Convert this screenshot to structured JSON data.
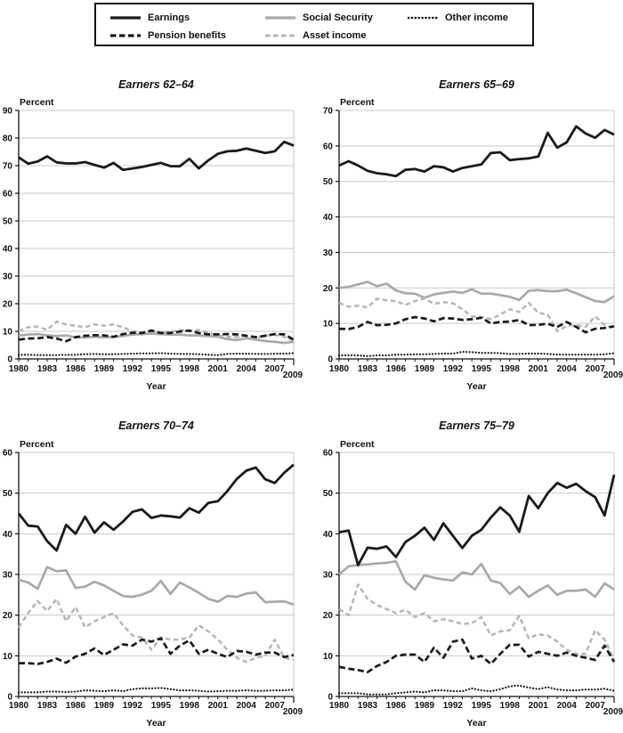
{
  "legend": {
    "items": [
      {
        "label": "Earnings",
        "style": "solid-black"
      },
      {
        "label": "Pension benefits",
        "style": "dashed-black"
      },
      {
        "label": "Social Security",
        "style": "solid-gray"
      },
      {
        "label": "Asset income",
        "style": "dashed-gray"
      },
      {
        "label": "Other income",
        "style": "dotted-black"
      }
    ]
  },
  "colors": {
    "black_line": "#1a1a1a",
    "gray_line": "#a9a9a9",
    "light_gray_line": "#b6b6b6",
    "gridline": "#c9c9c9"
  },
  "chart_data": [
    {
      "type": "line",
      "title": "Earners 62–64",
      "ylabel": "Percent",
      "xlabel": "Year",
      "ylim": [
        0,
        90
      ],
      "ytick_step": 10,
      "years_start": 1980,
      "years_end": 2009,
      "x_tick_labels": [
        "1980",
        "1983",
        "1986",
        "1989",
        "1992",
        "1995",
        "1998",
        "2001",
        "2004",
        "2007"
      ],
      "x_last_tick": "2009",
      "grid": true,
      "series": [
        {
          "name": "Social Security",
          "values": [
            8.5,
            8.8,
            9,
            8.5,
            8.3,
            8.5,
            7.8,
            7.8,
            8,
            7.8,
            8,
            8.3,
            8.8,
            9,
            9.2,
            9,
            8.8,
            8.8,
            8.5,
            8.5,
            8.3,
            8,
            7.2,
            6.8,
            7.5,
            7,
            6.5,
            6.2,
            5.8,
            6.2
          ]
        },
        {
          "name": "Asset income",
          "values": [
            10,
            11.5,
            11.7,
            10.5,
            13.5,
            12.5,
            12,
            11.5,
            12.5,
            12,
            12.5,
            11.5,
            10,
            9.5,
            10,
            9.5,
            9.7,
            10.5,
            10,
            10.5,
            9.5,
            8.5,
            8,
            8,
            7.5,
            7.5,
            8.5,
            8.7,
            8,
            6.5
          ]
        },
        {
          "name": "Pension benefits",
          "values": [
            7,
            7.4,
            7.5,
            7.9,
            7.4,
            6.4,
            7.9,
            8.4,
            8.6,
            8.5,
            8,
            9,
            9.5,
            9.4,
            10.3,
            9.4,
            9.4,
            9.9,
            10.3,
            9.4,
            8.9,
            8.9,
            9,
            8.9,
            8.4,
            7.9,
            8.4,
            9,
            8.9,
            7
          ]
        },
        {
          "name": "Earnings",
          "values": [
            73,
            70.7,
            71.5,
            73.4,
            71.2,
            70.8,
            70.8,
            71.3,
            70.3,
            69.3,
            71,
            68.5,
            69,
            69.5,
            70.3,
            71,
            69.8,
            69.8,
            72.5,
            69,
            71.9,
            74.3,
            75.2,
            75.4,
            76.2,
            75.4,
            74.6,
            75.2,
            78.6,
            77.3
          ]
        },
        {
          "name": "Other income",
          "values": [
            1.5,
            1.5,
            1.4,
            1.4,
            1.4,
            1.5,
            1.5,
            1.7,
            1.8,
            1.7,
            1.7,
            1.8,
            1.9,
            2,
            2,
            2.1,
            1.9,
            1.8,
            1.8,
            1.7,
            1.5,
            1.4,
            1.8,
            1.9,
            1.9,
            1.8,
            1.8,
            1.9,
            1.9,
            2.1
          ]
        }
      ]
    },
    {
      "type": "line",
      "title": "Earners 65–69",
      "ylabel": "Percent",
      "xlabel": "Year",
      "ylim": [
        0,
        70
      ],
      "ytick_step": 10,
      "years_start": 1980,
      "years_end": 2009,
      "x_tick_labels": [
        "1980",
        "1983",
        "1986",
        "1989",
        "1992",
        "1995",
        "1998",
        "2001",
        "2004",
        "2007"
      ],
      "x_last_tick": "2009",
      "grid": true,
      "series": [
        {
          "name": "Social Security",
          "values": [
            20,
            20.3,
            21,
            21.7,
            20.5,
            21.2,
            19.3,
            18.5,
            18.4,
            17.2,
            18.2,
            18.6,
            19,
            18.6,
            19.6,
            18.4,
            18.4,
            18,
            17.5,
            16.6,
            19.2,
            19.4,
            19.1,
            19.1,
            19.5,
            18.5,
            17.4,
            16.3,
            16,
            17.7
          ]
        },
        {
          "name": "Asset income",
          "values": [
            15.8,
            14.7,
            15,
            14.5,
            17,
            16.5,
            16.3,
            15.2,
            16.3,
            17,
            15.5,
            16,
            15.7,
            14,
            12,
            11.8,
            11.2,
            12.5,
            14,
            13.2,
            15.8,
            13,
            12.5,
            7.8,
            9.3,
            9.5,
            9,
            12,
            9.5,
            8.7
          ]
        },
        {
          "name": "Pension benefits",
          "values": [
            8.5,
            8.4,
            9,
            10.4,
            9.5,
            9.6,
            10,
            11.2,
            11.8,
            11.4,
            10.6,
            11.5,
            11.4,
            11,
            11.2,
            11.6,
            10,
            10.4,
            10.5,
            11,
            9.5,
            9.6,
            9.9,
            9,
            10.4,
            9,
            7.5,
            8.5,
            8.7,
            9.2
          ]
        },
        {
          "name": "Earnings",
          "values": [
            54.5,
            55.7,
            54.5,
            53,
            52.3,
            52,
            51.5,
            53.3,
            53.5,
            52.8,
            54.3,
            54,
            52.8,
            53.8,
            54.3,
            54.8,
            58,
            58.2,
            56,
            56.3,
            56.5,
            57,
            63.7,
            59.5,
            61,
            65.5,
            63.5,
            62.3,
            64.5,
            63.2
          ]
        },
        {
          "name": "Other income",
          "values": [
            1,
            1,
            1,
            0.8,
            1,
            1,
            1.2,
            1.2,
            1.3,
            1.3,
            1.4,
            1.5,
            1.5,
            2,
            1.9,
            1.7,
            1.7,
            1.6,
            1.4,
            1.4,
            1.5,
            1.5,
            1.4,
            1.2,
            1.2,
            1.2,
            1.2,
            1.2,
            1.3,
            1.6
          ]
        }
      ]
    },
    {
      "type": "line",
      "title": "Earners 70–74",
      "ylabel": "Percent",
      "xlabel": "Year",
      "ylim": [
        0,
        60
      ],
      "ytick_step": 10,
      "years_start": 1980,
      "years_end": 2009,
      "x_tick_labels": [
        "1980",
        "1983",
        "1986",
        "1989",
        "1992",
        "1995",
        "1998",
        "2001",
        "2004",
        "2007"
      ],
      "x_last_tick": "2009",
      "grid": true,
      "series": [
        {
          "name": "Social Security",
          "values": [
            28.7,
            28,
            26.5,
            31.8,
            30.8,
            31,
            26.7,
            27,
            28.2,
            27.3,
            26,
            24.7,
            24.5,
            25,
            26,
            28.4,
            25.2,
            28,
            26.8,
            25.5,
            24,
            23.3,
            24.7,
            24.5,
            25.3,
            25.6,
            23.2,
            23.3,
            23.4,
            22.6
          ]
        },
        {
          "name": "Asset income",
          "values": [
            17,
            20.5,
            23.5,
            21,
            24,
            18.5,
            22,
            17,
            18.5,
            19.5,
            20.5,
            17.5,
            15,
            14.5,
            11.5,
            14.5,
            14,
            14,
            14.5,
            17.5,
            16,
            14,
            11.5,
            9.5,
            8.5,
            9.5,
            10,
            14,
            9.5,
            9
          ]
        },
        {
          "name": "Pension benefits",
          "values": [
            8.2,
            8.2,
            8,
            8.5,
            9.3,
            8.3,
            9.8,
            10.5,
            11.8,
            10.2,
            11.5,
            12.8,
            12.5,
            14,
            13.5,
            14.3,
            10.5,
            12.5,
            13.8,
            10.5,
            11.5,
            10.5,
            9.7,
            11.2,
            11,
            10.3,
            10.8,
            10.8,
            9.7,
            10.2
          ]
        },
        {
          "name": "Earnings",
          "values": [
            45,
            42,
            41.8,
            38.2,
            35.9,
            42.2,
            40,
            44.2,
            40.3,
            42.8,
            41,
            43,
            45.4,
            46,
            43.9,
            44.5,
            44.3,
            44,
            46.3,
            45.2,
            47.6,
            48,
            50.5,
            53.5,
            55.5,
            56.3,
            53.4,
            52.5,
            55,
            57
          ]
        },
        {
          "name": "Other income",
          "values": [
            1,
            1,
            1,
            1.2,
            1.2,
            1.1,
            1.2,
            1.5,
            1.4,
            1.3,
            1.5,
            1.3,
            1.8,
            2,
            2,
            2.1,
            1.8,
            1.5,
            1.5,
            1.4,
            1.2,
            1.3,
            1.4,
            1.4,
            1.5,
            1.4,
            1.4,
            1.5,
            1.5,
            1.7
          ]
        }
      ]
    },
    {
      "type": "line",
      "title": "Earners 75–79",
      "ylabel": "Percent",
      "xlabel": "Year",
      "ylim": [
        0,
        60
      ],
      "ytick_step": 10,
      "years_start": 1980,
      "years_end": 2009,
      "x_tick_labels": [
        "1980",
        "1983",
        "1986",
        "1989",
        "1992",
        "1995",
        "1998",
        "2001",
        "2004",
        "2007"
      ],
      "x_last_tick": "2009",
      "grid": true,
      "series": [
        {
          "name": "Social Security",
          "values": [
            30,
            32,
            32.3,
            32.5,
            32.7,
            32.9,
            33.2,
            28.2,
            26.3,
            29.8,
            29.2,
            28.8,
            28.5,
            30.5,
            30,
            32.6,
            28.5,
            27.9,
            25.2,
            27,
            24.5,
            26,
            27.3,
            25,
            26,
            26,
            26.3,
            24.5,
            27.8,
            26.3
          ]
        },
        {
          "name": "Asset income",
          "values": [
            21.5,
            20,
            27.5,
            24,
            22.5,
            21.5,
            20.5,
            21.3,
            19.5,
            20.5,
            18.5,
            19,
            18.5,
            17.8,
            18,
            19.5,
            15,
            16,
            16.3,
            19.8,
            14.3,
            15.3,
            15,
            13.5,
            11.5,
            10.5,
            10.5,
            16.3,
            14,
            9
          ]
        },
        {
          "name": "Pension benefits",
          "values": [
            7.3,
            6.8,
            6.5,
            6,
            7.5,
            8.5,
            10,
            10.3,
            10.3,
            8.5,
            12,
            9.5,
            13.5,
            14,
            9.3,
            10,
            8,
            10.5,
            12.7,
            12.7,
            9.8,
            11,
            10.5,
            10,
            10.8,
            10,
            9.5,
            9,
            12.5,
            8.5
          ]
        },
        {
          "name": "Earnings",
          "values": [
            40.4,
            40.8,
            32.3,
            36.6,
            36.3,
            36.9,
            34.3,
            38,
            39.5,
            41.5,
            38.5,
            42.6,
            39.5,
            36.5,
            39.5,
            41,
            44,
            46.5,
            44.5,
            40.5,
            49.3,
            46.3,
            50,
            52.5,
            51.3,
            52.3,
            50.5,
            49,
            44.5,
            54.5
          ]
        },
        {
          "name": "Other income",
          "values": [
            0.8,
            0.8,
            0.8,
            0.5,
            0.5,
            0.5,
            0.8,
            1,
            1.2,
            1,
            1.5,
            1.5,
            1.3,
            1.3,
            2,
            1.5,
            1.3,
            1.8,
            2.5,
            2.7,
            2.2,
            1.8,
            2.3,
            1.7,
            1.5,
            1.5,
            1.7,
            1.7,
            1.9,
            1.4
          ]
        }
      ]
    }
  ]
}
